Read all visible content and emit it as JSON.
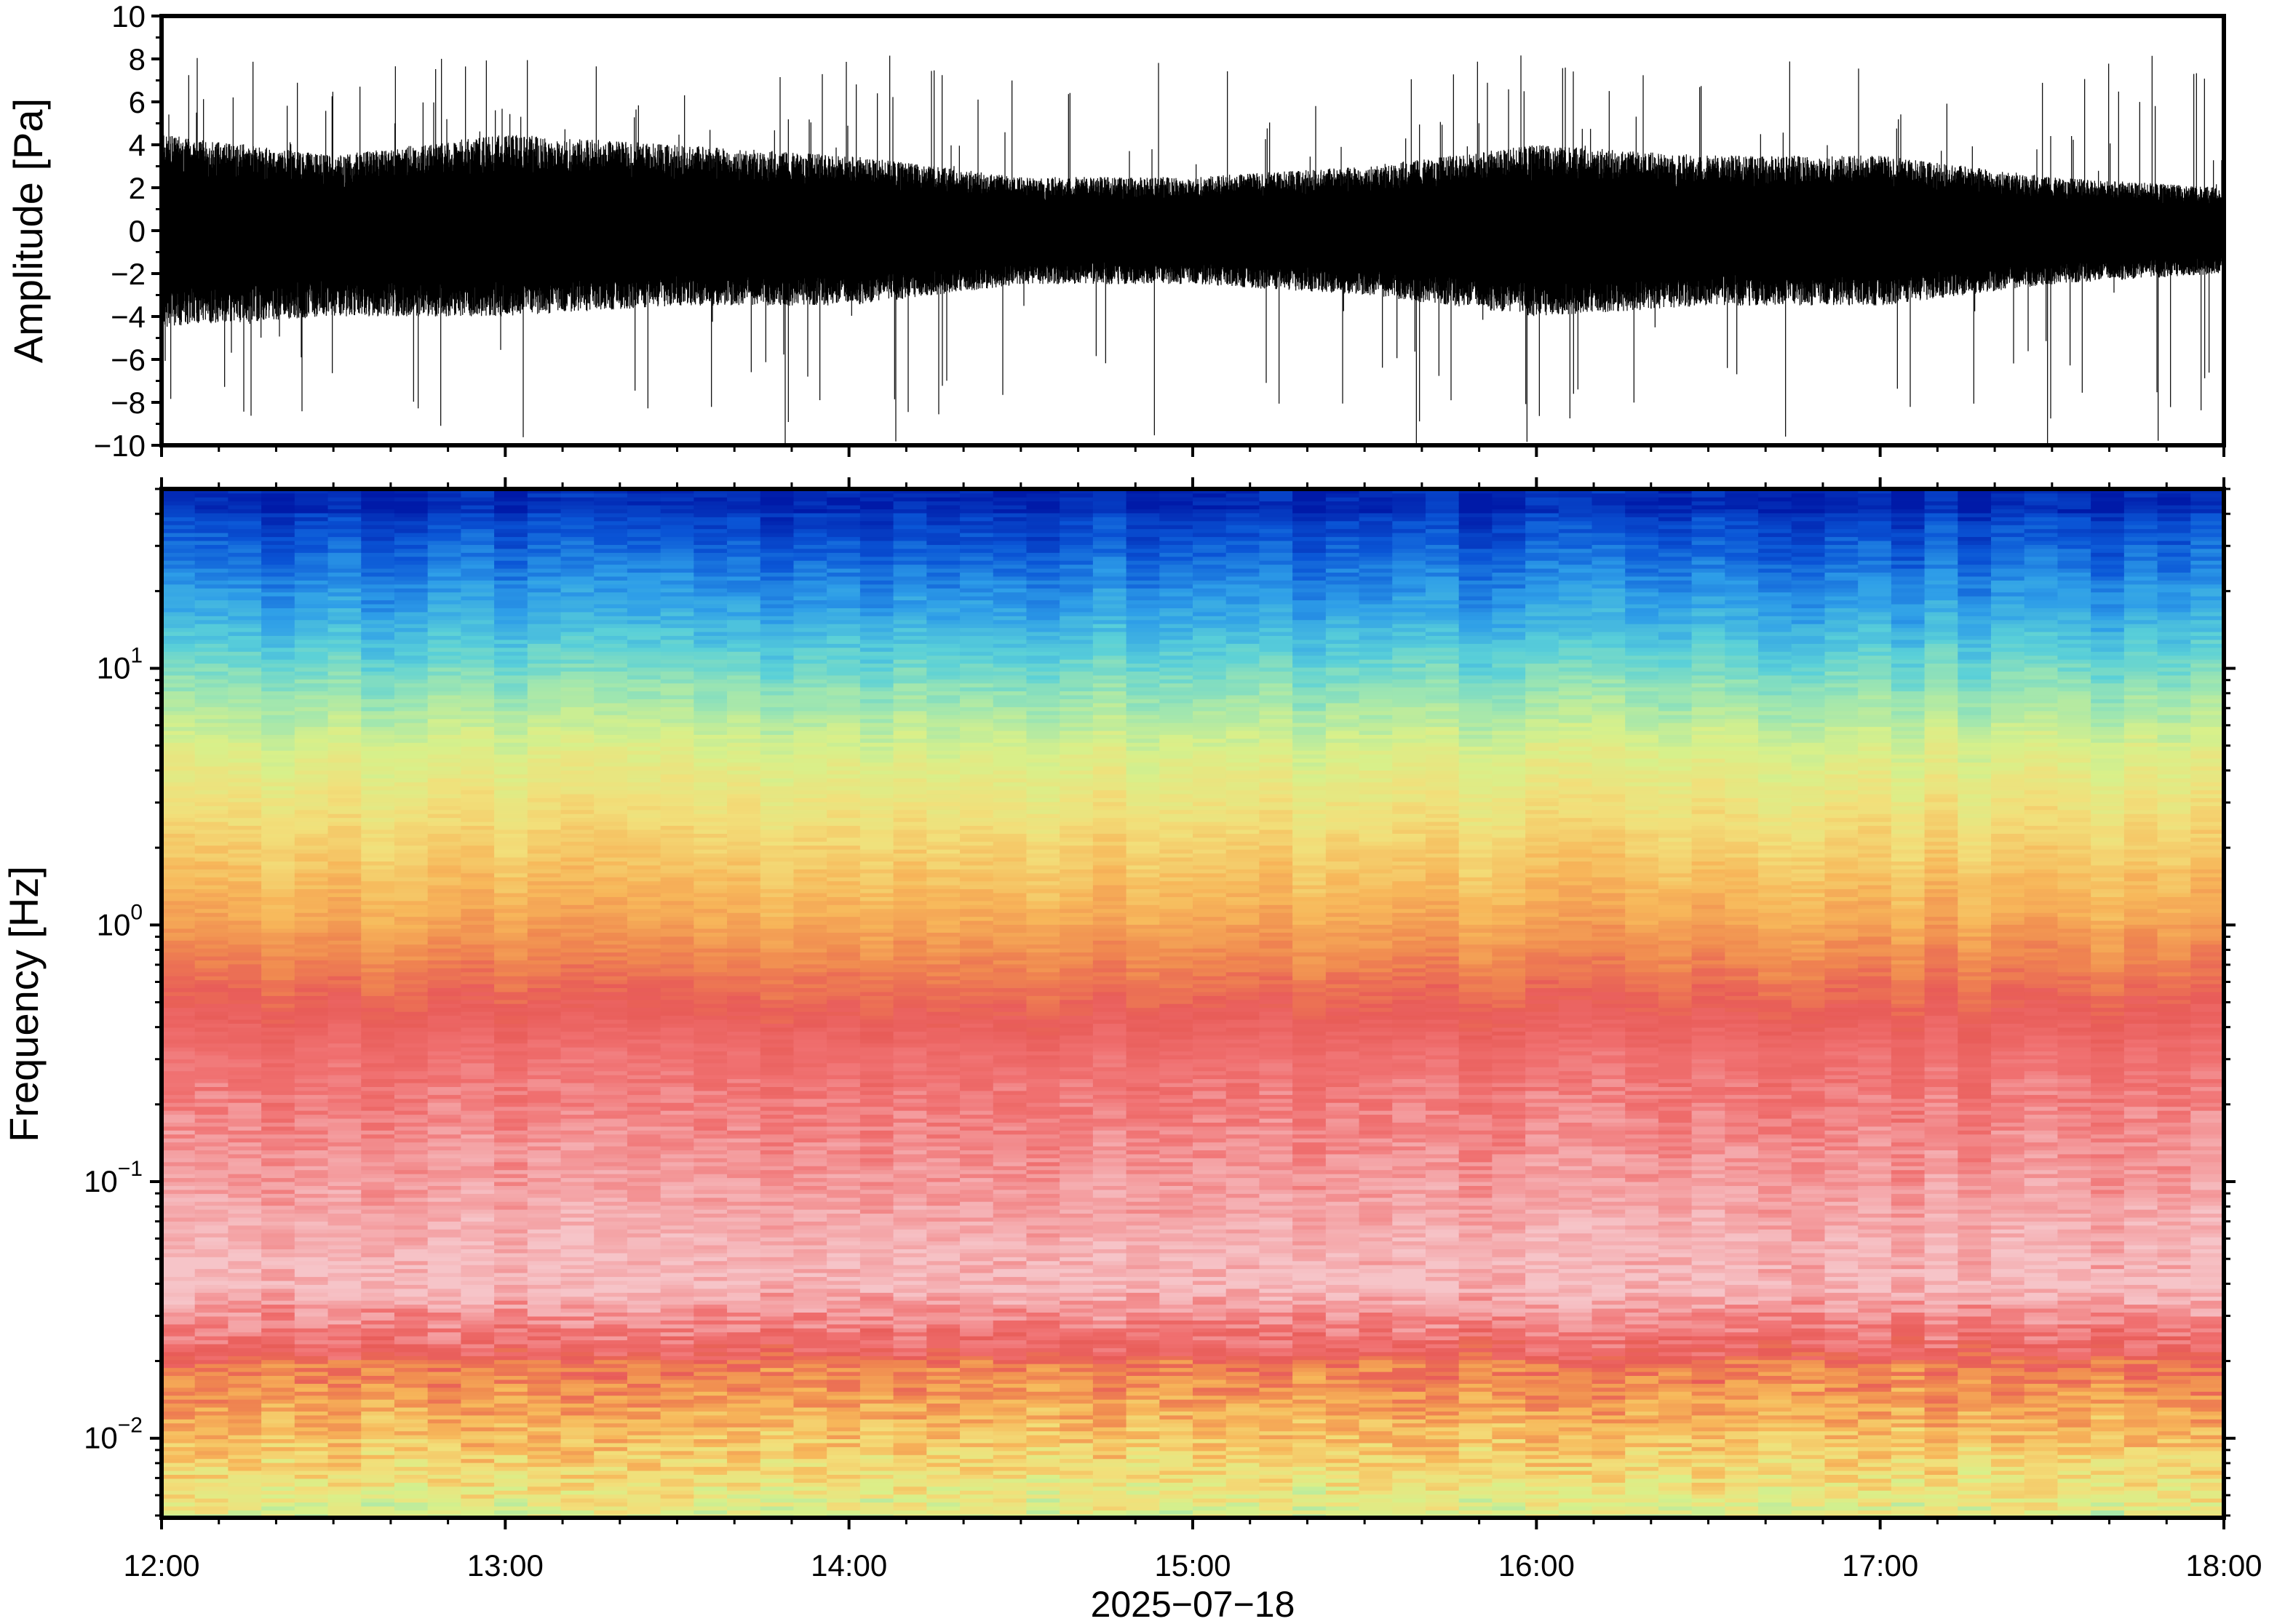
{
  "chart_data": [
    {
      "type": "line",
      "panel": "waveform",
      "title": "",
      "ylabel": "Amplitude [Pa]",
      "xlabel": "",
      "ylim": [
        -10,
        10
      ],
      "yticks": [
        -10,
        -8,
        -6,
        -4,
        -2,
        0,
        2,
        4,
        6,
        8,
        10
      ],
      "ytick_labels": [
        "−10",
        "−8",
        "−6",
        "−4",
        "−2",
        "0",
        "2",
        "4",
        "6",
        "8",
        "10"
      ],
      "xrange": [
        "12:00",
        "18:00"
      ],
      "envelope_hours": [
        12.0,
        12.5,
        13.0,
        13.5,
        14.0,
        14.5,
        15.0,
        15.5,
        16.0,
        16.5,
        17.0,
        17.5,
        18.0
      ],
      "envelope_upper": [
        4.5,
        3.5,
        4.5,
        4.0,
        3.5,
        2.5,
        2.5,
        3.0,
        4.0,
        3.5,
        3.5,
        2.5,
        2.0
      ],
      "envelope_lower": [
        -4.5,
        -4.0,
        -4.0,
        -3.5,
        -3.5,
        -2.5,
        -2.5,
        -3.0,
        -4.0,
        -3.5,
        -3.5,
        -2.5,
        -2.0
      ],
      "peak_max": 8.2,
      "peak_min": -10,
      "color": "#000000",
      "grid": false
    },
    {
      "type": "heatmap",
      "panel": "spectrogram",
      "title": "",
      "ylabel": "Frequency [Hz]",
      "xlabel": "2025−07−18",
      "yscale": "log",
      "ylim": [
        0.0049,
        50
      ],
      "ytick_labels": [
        {
          "value": 0.01,
          "base": "10",
          "exp": "−2"
        },
        {
          "value": 0.1,
          "base": "10",
          "exp": "−1"
        },
        {
          "value": 1,
          "base": "10",
          "exp": "0"
        },
        {
          "value": 10,
          "base": "10",
          "exp": "1"
        }
      ],
      "xticks": [
        "12:00",
        "13:00",
        "14:00",
        "15:00",
        "16:00",
        "17:00",
        "18:00"
      ],
      "x_hours": [
        12,
        13,
        14,
        15,
        16,
        17,
        18
      ],
      "colormap": [
        "#001aa8",
        "#0a55d6",
        "#2e9ee8",
        "#5ad0d8",
        "#9fe6b0",
        "#d8f08a",
        "#f2df7a",
        "#f7b75a",
        "#f08a50",
        "#e85c58",
        "#f07070",
        "#f4a0a2",
        "#f6c4c8"
      ],
      "grid": false
    }
  ]
}
